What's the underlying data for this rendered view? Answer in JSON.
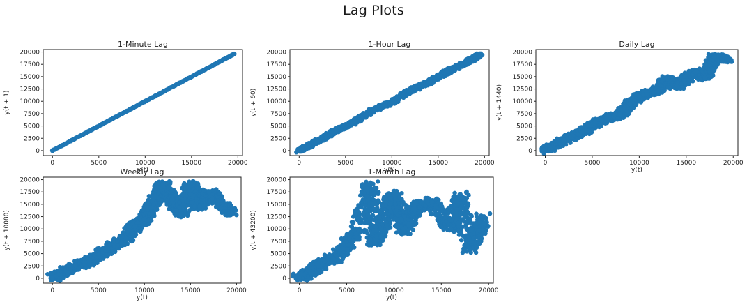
{
  "figure": {
    "title": "Lag Plots"
  },
  "style": {
    "marker_color": "#1f77b4",
    "frame_color": "#222222"
  },
  "chart_data": [
    {
      "type": "scatter",
      "title": "1-Minute Lag",
      "xlabel": "y(t)",
      "ylabel": "y(t + 1)",
      "lag_minutes": 1,
      "xlim": [
        -1000,
        20500
      ],
      "ylim": [
        -1000,
        20500
      ],
      "xticks": [
        0,
        5000,
        10000,
        15000,
        20000
      ],
      "yticks": [
        0,
        2500,
        5000,
        7500,
        10000,
        12500,
        15000,
        17500,
        20000
      ],
      "x": [
        0,
        2000,
        4000,
        6000,
        8000,
        10000,
        12000,
        14000,
        16000,
        18000,
        19600
      ],
      "y": [
        0,
        2000,
        4000,
        6000,
        8000,
        10000,
        12000,
        14000,
        16000,
        18000,
        19600
      ],
      "grid": false
    },
    {
      "type": "scatter",
      "title": "1-Hour Lag",
      "xlabel": "y(t)",
      "ylabel": "y(t + 60)",
      "lag_minutes": 60,
      "xlim": [
        -1000,
        20500
      ],
      "ylim": [
        -1000,
        20500
      ],
      "xticks": [
        0,
        5000,
        10000,
        15000,
        20000
      ],
      "yticks": [
        0,
        2500,
        5000,
        7500,
        10000,
        12500,
        15000,
        17500,
        20000
      ],
      "x": [
        0,
        2000,
        4000,
        6000,
        8000,
        10000,
        12000,
        14000,
        16000,
        18000,
        19600
      ],
      "y": [
        0,
        1900,
        4100,
        5900,
        8200,
        9800,
        12200,
        13800,
        16100,
        17800,
        19500
      ],
      "grid": false
    },
    {
      "type": "scatter",
      "title": "Daily Lag",
      "xlabel": "y(t)",
      "ylabel": "y(t + 1440)",
      "lag_minutes": 1440,
      "xlim": [
        -1000,
        20500
      ],
      "ylim": [
        -1000,
        20500
      ],
      "xticks": [
        0,
        5000,
        10000,
        15000,
        20000
      ],
      "yticks": [
        0,
        2500,
        5000,
        7500,
        10000,
        12500,
        15000,
        17500,
        20000
      ],
      "x": [
        0,
        2000,
        4000,
        6000,
        8000,
        9000,
        10000,
        12000,
        13000,
        14000,
        16000,
        17000,
        18000,
        19500
      ],
      "y": [
        0,
        2100,
        3800,
        6200,
        7300,
        9500,
        11000,
        12200,
        14500,
        13000,
        16000,
        14800,
        19000,
        18500
      ],
      "grid": false
    },
    {
      "type": "scatter",
      "title": "Weekly Lag",
      "xlabel": "y(t)",
      "ylabel": "y(t + 10080)",
      "lag_minutes": 10080,
      "xlim": [
        -1000,
        20500
      ],
      "ylim": [
        -1000,
        20500
      ],
      "xticks": [
        0,
        5000,
        10000,
        15000,
        20000
      ],
      "yticks": [
        0,
        2500,
        5000,
        7500,
        10000,
        12500,
        15000,
        17500,
        20000
      ],
      "x": [
        0,
        2000,
        4000,
        6000,
        8000,
        9000,
        10000,
        11000,
        12000,
        13000,
        14000,
        15000,
        16000,
        17000,
        18000,
        19500
      ],
      "y": [
        0,
        2000,
        3500,
        6000,
        8000,
        10500,
        12000,
        15000,
        19000,
        16000,
        13000,
        19000,
        14500,
        17500,
        15500,
        13000
      ],
      "grid": false
    },
    {
      "type": "scatter",
      "title": "1-Month Lag",
      "xlabel": "y(t)",
      "ylabel": "y(t + 43200)",
      "lag_minutes": 43200,
      "xlim": [
        -1000,
        20500
      ],
      "ylim": [
        -1000,
        20500
      ],
      "xticks": [
        0,
        5000,
        10000,
        15000,
        20000
      ],
      "yticks": [
        0,
        2500,
        5000,
        7500,
        10000,
        12500,
        15000,
        17500,
        20000
      ],
      "x": [
        0,
        2000,
        4000,
        6000,
        7500,
        8000,
        9000,
        10000,
        11000,
        12000,
        14000,
        16000,
        17000,
        18000,
        19500
      ],
      "y": [
        0,
        2500,
        4500,
        9000,
        19000,
        7000,
        12000,
        17000,
        9500,
        14000,
        15500,
        10000,
        17000,
        6000,
        12500
      ],
      "grid": false
    }
  ]
}
